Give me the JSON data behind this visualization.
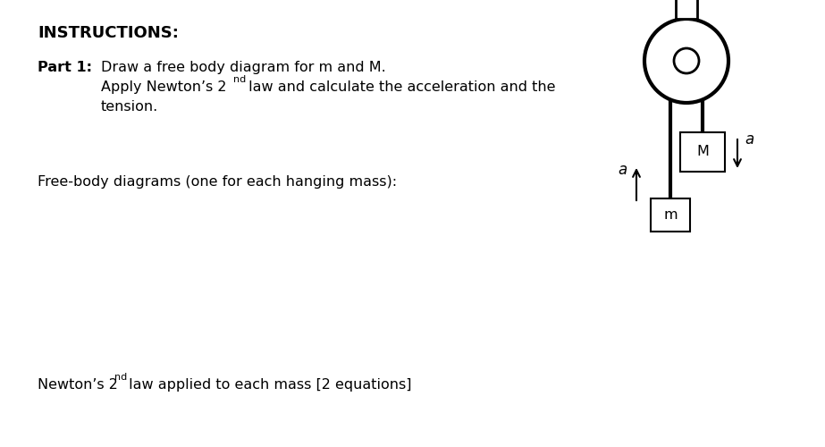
{
  "bg_color": "#ffffff",
  "title_text": "INSTRUCTIONS:",
  "part1_label": "Part 1:",
  "part1_line1": "Draw a free body diagram for m and M.",
  "part1_line2a": "Apply Newton’s 2",
  "part1_line2_sup": "nd",
  "part1_line2b": " law and calculate the acceleration and the",
  "part1_line3": "tension.",
  "free_body_text": "Free-body diagrams (one for each hanging mass):",
  "newton_line_a": "Newton’s 2",
  "newton_sup": "nd",
  "newton_line_b": " law applied to each mass [2 equations]",
  "text_color": "#000000",
  "rope_color": "#000000",
  "box_color": "#000000"
}
